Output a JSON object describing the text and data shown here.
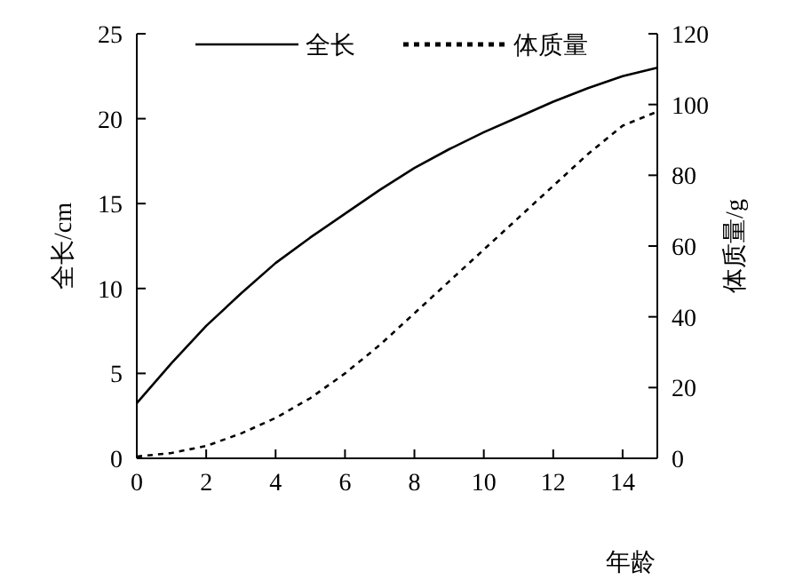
{
  "chart_data": {
    "type": "line",
    "xlabel": "年龄",
    "ylabel": "全长/cm",
    "y2label": "体质量/g",
    "x": [
      0,
      1,
      2,
      3,
      4,
      5,
      6,
      7,
      8,
      9,
      10,
      11,
      12,
      13,
      14,
      15
    ],
    "series": [
      {
        "name": "全长",
        "color": "#000000",
        "line_style": "solid",
        "values": [
          3.25,
          5.6,
          7.8,
          9.7,
          11.5,
          13.0,
          14.4,
          15.8,
          17.1,
          18.2,
          19.2,
          20.1,
          21.0,
          21.8,
          22.5,
          23.0
        ]
      },
      {
        "name": "体质量",
        "color": "#000000",
        "line_style": "dotted",
        "axis": "y2",
        "values": [
          0.5,
          1.5,
          3.5,
          7,
          11.4,
          17,
          24,
          32,
          41,
          50,
          59,
          68,
          77,
          86,
          94,
          98
        ]
      }
    ],
    "xlim": [
      0,
      15
    ],
    "xticks": [
      0,
      2,
      4,
      6,
      8,
      10,
      12,
      14
    ],
    "ylim": [
      0,
      25
    ],
    "yticks": [
      0,
      5,
      10,
      15,
      20,
      25
    ],
    "y2lim": [
      0,
      120
    ],
    "y2ticks": [
      0,
      20,
      40,
      60,
      80,
      100,
      120
    ],
    "legend": "top",
    "grid": false,
    "marker": "none"
  }
}
